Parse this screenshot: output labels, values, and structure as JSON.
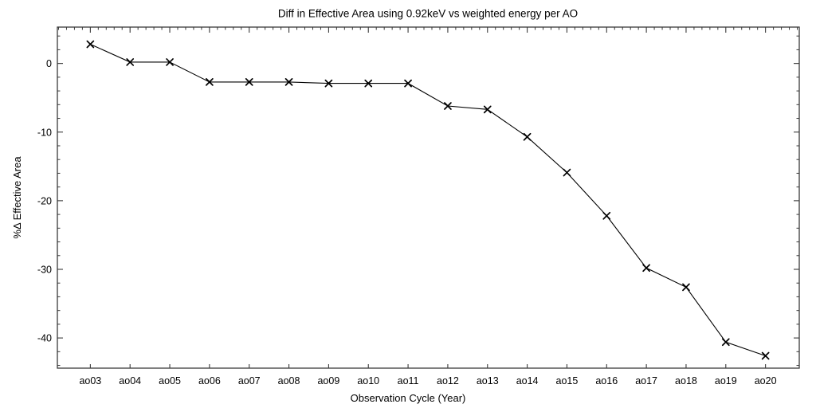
{
  "figure": {
    "background": "#ffffff",
    "frame_color": "#3a3a3a",
    "text_color": "#000000"
  },
  "chart_data": {
    "type": "line",
    "title": "Diff in Effective Area using 0.92keV vs weighted energy per AO",
    "xlabel": "Observation Cycle (Year)",
    "ylabel": "%Δ Effective Area",
    "categories": [
      "ao03",
      "ao04",
      "ao05",
      "ao06",
      "ao07",
      "ao08",
      "ao09",
      "ao10",
      "ao11",
      "ao12",
      "ao13",
      "ao14",
      "ao15",
      "ao16",
      "ao17",
      "ao18",
      "ao19",
      "ao20"
    ],
    "values": [
      2.8,
      0.2,
      0.2,
      -2.7,
      -2.7,
      -2.7,
      -2.9,
      -2.9,
      -2.9,
      -6.2,
      -6.7,
      -10.7,
      -15.9,
      -22.2,
      -29.8,
      -32.6,
      -40.6,
      -42.6
    ],
    "yticks": [
      0,
      -10,
      -20,
      -30,
      -40
    ],
    "ytick_labels": [
      "0",
      "-10",
      "-20",
      "-30",
      "-40"
    ],
    "ylim": [
      -44.4,
      5.3
    ],
    "xlim_index": [
      -0.83,
      17.85
    ],
    "y_minor_step": 2,
    "x_minor_step_index": 0.2,
    "grid": false,
    "legend": null,
    "marker": "x",
    "line_color": "#000000",
    "marker_color": "#000000"
  }
}
